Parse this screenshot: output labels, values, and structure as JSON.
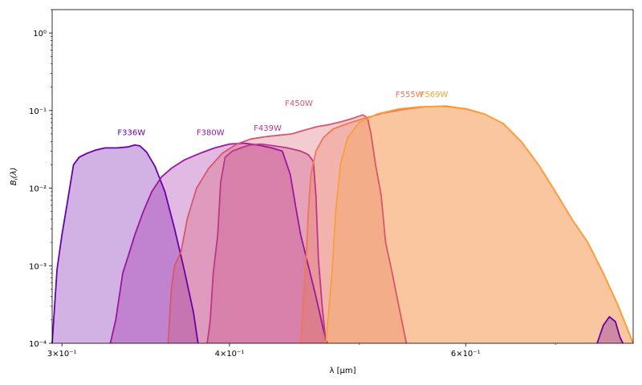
{
  "chart_data": {
    "type": "area",
    "xlabel": "λ [μm]",
    "ylabel": "B_i(λ)",
    "xscale": "log",
    "yscale": "log",
    "xlim": [
      0.295,
      0.8
    ],
    "ylim": [
      0.0001,
      2.0
    ],
    "x_tick_labels": [
      "3×10⁻¹",
      "4×10⁻¹",
      "6×10⁻¹"
    ],
    "y_tick_labels": [
      "10⁻⁴",
      "10⁻³",
      "10⁻²",
      "10⁻¹",
      "10⁰"
    ],
    "grid": false,
    "legend": "inline labels",
    "series": [
      {
        "name": "F336W",
        "color": "#6a00a8",
        "label_at": [
          0.33,
          0.048
        ],
        "points": [
          [
            0.295,
            0.0001
          ],
          [
            0.2975,
            0.0009
          ],
          [
            0.3,
            0.0025
          ],
          [
            0.303,
            0.007
          ],
          [
            0.306,
            0.02
          ],
          [
            0.309,
            0.025
          ],
          [
            0.313,
            0.028
          ],
          [
            0.318,
            0.031
          ],
          [
            0.323,
            0.033
          ],
          [
            0.33,
            0.033
          ],
          [
            0.336,
            0.034
          ],
          [
            0.34,
            0.036
          ],
          [
            0.343,
            0.035
          ],
          [
            0.347,
            0.029
          ],
          [
            0.352,
            0.019
          ],
          [
            0.358,
            0.009
          ],
          [
            0.364,
            0.003
          ],
          [
            0.37,
            0.0009
          ],
          [
            0.376,
            0.00025
          ],
          [
            0.379,
            0.0001
          ]
        ]
      },
      {
        "name": "F380W",
        "color": "#9c179e",
        "label_at": [
          0.378,
          0.048
        ],
        "points": [
          [
            0.326,
            0.0001
          ],
          [
            0.329,
            0.0002
          ],
          [
            0.331,
            0.0004
          ],
          [
            0.333,
            0.0008
          ],
          [
            0.336,
            0.0013
          ],
          [
            0.34,
            0.0025
          ],
          [
            0.345,
            0.005
          ],
          [
            0.35,
            0.009
          ],
          [
            0.356,
            0.014
          ],
          [
            0.362,
            0.018
          ],
          [
            0.37,
            0.023
          ],
          [
            0.38,
            0.028
          ],
          [
            0.39,
            0.033
          ],
          [
            0.4,
            0.037
          ],
          [
            0.41,
            0.038
          ],
          [
            0.42,
            0.036
          ],
          [
            0.43,
            0.033
          ],
          [
            0.438,
            0.03
          ],
          [
            0.444,
            0.015
          ],
          [
            0.448,
            0.006
          ],
          [
            0.452,
            0.0025
          ],
          [
            0.458,
            0.001
          ],
          [
            0.464,
            0.0004
          ],
          [
            0.47,
            0.00015
          ],
          [
            0.473,
            0.0001
          ]
        ]
      },
      {
        "name": "F439W",
        "color": "#bd3786",
        "label_at": [
          0.417,
          0.055
        ],
        "points": [
          [
            0.385,
            0.0001
          ],
          [
            0.387,
            0.0002
          ],
          [
            0.389,
            0.0008
          ],
          [
            0.392,
            0.0025
          ],
          [
            0.394,
            0.012
          ],
          [
            0.397,
            0.025
          ],
          [
            0.402,
            0.03
          ],
          [
            0.408,
            0.033
          ],
          [
            0.414,
            0.036
          ],
          [
            0.422,
            0.037
          ],
          [
            0.432,
            0.035
          ],
          [
            0.442,
            0.033
          ],
          [
            0.452,
            0.03
          ],
          [
            0.458,
            0.027
          ],
          [
            0.462,
            0.022
          ],
          [
            0.464,
            0.008
          ],
          [
            0.466,
            0.0012
          ],
          [
            0.469,
            0.0003
          ],
          [
            0.472,
            0.0001
          ]
        ]
      },
      {
        "name": "F450W",
        "color": "#d8576b",
        "label_at": [
          0.44,
          0.115
        ],
        "points": [
          [
            0.36,
            0.0001
          ],
          [
            0.362,
            0.0005
          ],
          [
            0.364,
            0.001
          ],
          [
            0.368,
            0.0015
          ],
          [
            0.372,
            0.004
          ],
          [
            0.378,
            0.01
          ],
          [
            0.386,
            0.018
          ],
          [
            0.395,
            0.028
          ],
          [
            0.405,
            0.037
          ],
          [
            0.415,
            0.043
          ],
          [
            0.425,
            0.046
          ],
          [
            0.435,
            0.048
          ],
          [
            0.445,
            0.05
          ],
          [
            0.455,
            0.056
          ],
          [
            0.465,
            0.062
          ],
          [
            0.475,
            0.066
          ],
          [
            0.485,
            0.072
          ],
          [
            0.495,
            0.08
          ],
          [
            0.503,
            0.088
          ],
          [
            0.507,
            0.08
          ],
          [
            0.51,
            0.05
          ],
          [
            0.514,
            0.02
          ],
          [
            0.519,
            0.008
          ],
          [
            0.523,
            0.002
          ],
          [
            0.529,
            0.0008
          ],
          [
            0.535,
            0.0003
          ],
          [
            0.542,
            0.0001
          ]
        ]
      },
      {
        "name": "F555W",
        "color": "#ed7953",
        "label_at": [
          0.532,
          0.15
        ],
        "points": [
          [
            0.452,
            0.0001
          ],
          [
            0.456,
            0.001
          ],
          [
            0.458,
            0.005
          ],
          [
            0.46,
            0.015
          ],
          [
            0.464,
            0.03
          ],
          [
            0.47,
            0.045
          ],
          [
            0.478,
            0.058
          ],
          [
            0.49,
            0.068
          ],
          [
            0.505,
            0.08
          ],
          [
            0.52,
            0.092
          ],
          [
            0.54,
            0.104
          ],
          [
            0.56,
            0.112
          ],
          [
            0.58,
            0.114
          ],
          [
            0.6,
            0.105
          ],
          [
            0.62,
            0.09
          ],
          [
            0.64,
            0.068
          ],
          [
            0.66,
            0.04
          ],
          [
            0.68,
            0.02
          ],
          [
            0.7,
            0.009
          ],
          [
            0.72,
            0.004
          ],
          [
            0.74,
            0.002
          ],
          [
            0.76,
            0.0008
          ],
          [
            0.78,
            0.0003
          ],
          [
            0.8,
            0.0001
          ]
        ]
      },
      {
        "name": "F569W",
        "color": "#fb9f3a",
        "label_at": [
          0.555,
          0.15
        ],
        "points": [
          [
            0.472,
            0.0001
          ],
          [
            0.477,
            0.0008
          ],
          [
            0.48,
            0.005
          ],
          [
            0.484,
            0.02
          ],
          [
            0.49,
            0.045
          ],
          [
            0.5,
            0.07
          ],
          [
            0.515,
            0.09
          ],
          [
            0.535,
            0.105
          ],
          [
            0.555,
            0.112
          ],
          [
            0.575,
            0.113
          ],
          [
            0.6,
            0.106
          ],
          [
            0.62,
            0.09
          ],
          [
            0.64,
            0.068
          ],
          [
            0.66,
            0.04
          ],
          [
            0.68,
            0.02
          ],
          [
            0.7,
            0.009
          ],
          [
            0.72,
            0.004
          ],
          [
            0.74,
            0.002
          ],
          [
            0.76,
            0.0008
          ],
          [
            0.78,
            0.0003
          ],
          [
            0.8,
            0.0001
          ]
        ]
      },
      {
        "name": "",
        "color": "#6a00a8",
        "points": [
          [
            0.752,
            0.0001
          ],
          [
            0.76,
            0.00017
          ],
          [
            0.768,
            0.00022
          ],
          [
            0.776,
            0.00019
          ],
          [
            0.782,
            0.00012
          ],
          [
            0.786,
            0.0001
          ]
        ]
      }
    ]
  }
}
